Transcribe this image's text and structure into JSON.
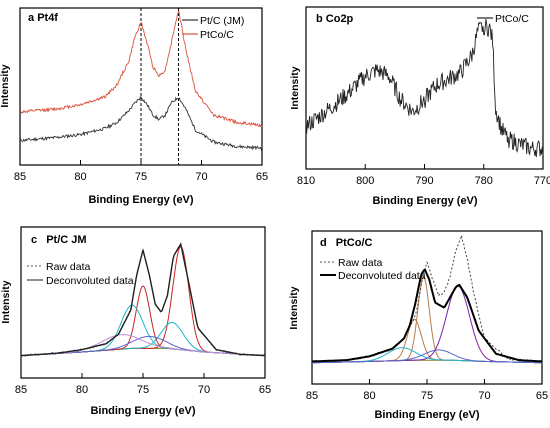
{
  "chart_data": [
    {
      "panel": "a",
      "title": "Pt4f",
      "type": "line",
      "xlabel": "Binding Energy (eV)",
      "ylabel": "Intensity",
      "xlim": [
        85,
        65
      ],
      "xticks": [
        "85",
        "80",
        "75",
        "70",
        "65"
      ],
      "reference_lines_x": [
        75.0,
        71.9
      ],
      "series": [
        {
          "name": "Pt/C (JM)",
          "color": "#333333",
          "x": [
            85,
            82,
            80,
            78,
            77,
            76,
            75.5,
            75.0,
            74.5,
            74,
            73.5,
            73,
            72.5,
            71.9,
            71.3,
            70.5,
            69,
            67,
            65
          ],
          "y": [
            0.13,
            0.15,
            0.17,
            0.21,
            0.25,
            0.33,
            0.38,
            0.42,
            0.37,
            0.3,
            0.27,
            0.3,
            0.38,
            0.42,
            0.34,
            0.2,
            0.12,
            0.09,
            0.08
          ]
        },
        {
          "name": "PtCo/C",
          "color": "#d9533c",
          "x": [
            85,
            82,
            80,
            78,
            77,
            76,
            75.5,
            75.0,
            74.5,
            74,
            73.5,
            73,
            72.5,
            71.9,
            71.3,
            70.5,
            69,
            67,
            65
          ],
          "y": [
            0.32,
            0.34,
            0.37,
            0.42,
            0.5,
            0.66,
            0.82,
            0.92,
            0.78,
            0.62,
            0.56,
            0.6,
            0.78,
            1.0,
            0.74,
            0.46,
            0.3,
            0.25,
            0.23
          ]
        }
      ]
    },
    {
      "panel": "b",
      "title": "Co2p",
      "type": "line",
      "xlabel": "Binding Energy (eV)",
      "ylabel": "Intensity",
      "xlim": [
        810,
        770
      ],
      "xticks": [
        "810",
        "800",
        "790",
        "780",
        "770"
      ],
      "series": [
        {
          "name": "PtCo/C",
          "color": "#222222",
          "x": [
            810,
            806,
            803,
            800,
            798,
            796,
            794,
            792,
            790,
            788,
            786,
            784,
            782,
            781,
            780,
            779,
            778.5,
            778,
            777,
            776,
            774,
            772
          ],
          "y": [
            0.28,
            0.4,
            0.5,
            0.62,
            0.66,
            0.62,
            0.46,
            0.38,
            0.46,
            0.56,
            0.6,
            0.64,
            0.76,
            0.92,
            0.96,
            0.94,
            0.86,
            0.4,
            0.26,
            0.2,
            0.16,
            0.13
          ]
        }
      ]
    },
    {
      "panel": "c",
      "title": "Pt/C JM",
      "type": "line",
      "xlabel": "Binding Energy (eV)",
      "ylabel": "Intensity",
      "xlim": [
        85,
        65
      ],
      "xticks": [
        "85",
        "80",
        "75",
        "70",
        "65"
      ],
      "legend": [
        "Raw data",
        "Deconvoluted data"
      ],
      "baseline": {
        "x": [
          85,
          80,
          76,
          73,
          70,
          65
        ],
        "y": [
          0.02,
          0.05,
          0.08,
          0.08,
          0.05,
          0.02
        ]
      },
      "components": [
        {
          "center": 71.9,
          "height": 0.86,
          "width": 0.65,
          "color": "#cc2222"
        },
        {
          "center": 72.6,
          "height": 0.22,
          "width": 0.9,
          "color": "#1fb6c9"
        },
        {
          "center": 75.0,
          "height": 0.52,
          "width": 0.55,
          "color": "#cc2222"
        },
        {
          "center": 75.9,
          "height": 0.36,
          "width": 0.9,
          "color": "#1fb6c9"
        },
        {
          "center": 74.5,
          "height": 0.1,
          "width": 1.3,
          "color": "#5a66cc"
        },
        {
          "center": 76.8,
          "height": 0.12,
          "width": 1.6,
          "color": "#c28fd6"
        }
      ],
      "series": [
        {
          "name": "Raw data",
          "x": [
            85,
            82,
            80,
            78,
            77,
            76,
            75.5,
            75.0,
            74.5,
            74,
            73.5,
            73,
            72.5,
            71.9,
            71.3,
            70.5,
            69,
            67,
            65
          ],
          "y": [
            0.02,
            0.04,
            0.07,
            0.12,
            0.2,
            0.4,
            0.7,
            0.9,
            0.7,
            0.45,
            0.38,
            0.52,
            0.85,
            0.95,
            0.65,
            0.25,
            0.07,
            0.03,
            0.02
          ]
        },
        {
          "name": "Deconvoluted data",
          "x": [
            85,
            82,
            80,
            78,
            77,
            76,
            75.5,
            75.0,
            74.5,
            74,
            73.5,
            73,
            72.5,
            71.9,
            71.3,
            70.5,
            69,
            67,
            65
          ],
          "y": [
            0.02,
            0.04,
            0.07,
            0.12,
            0.2,
            0.4,
            0.7,
            0.9,
            0.7,
            0.45,
            0.38,
            0.52,
            0.85,
            0.95,
            0.65,
            0.25,
            0.07,
            0.03,
            0.02
          ]
        }
      ]
    },
    {
      "panel": "d",
      "title": "PtCo/C",
      "type": "line",
      "xlabel": "Binding Energy (eV)",
      "ylabel": "Intensity",
      "xlim": [
        85,
        65
      ],
      "xticks": [
        "85",
        "80",
        "75",
        "70",
        "65"
      ],
      "legend": [
        "Raw data",
        "Deconvoluted data"
      ],
      "baseline": {
        "x": [
          85,
          80,
          76,
          73,
          70,
          65
        ],
        "y": [
          0.01,
          0.02,
          0.03,
          0.03,
          0.02,
          0.01
        ]
      },
      "components": [
        {
          "center": 75.3,
          "height": 0.65,
          "width": 0.5,
          "color": "#b87a4a"
        },
        {
          "center": 76.1,
          "height": 0.32,
          "width": 0.6,
          "color": "#b87a4a"
        },
        {
          "center": 72.3,
          "height": 0.58,
          "width": 1.0,
          "color": "#7a22aa"
        },
        {
          "center": 77.2,
          "height": 0.1,
          "width": 1.2,
          "color": "#1fb6c9"
        },
        {
          "center": 74.0,
          "height": 0.08,
          "width": 1.2,
          "color": "#5a66cc"
        }
      ],
      "series": [
        {
          "name": "Raw data",
          "x": [
            85,
            82,
            80,
            78,
            77,
            76,
            75.5,
            75.0,
            74.5,
            74,
            73.5,
            73,
            72.5,
            72.0,
            71.5,
            71,
            70,
            68,
            65
          ],
          "y": [
            0.02,
            0.03,
            0.06,
            0.12,
            0.2,
            0.38,
            0.62,
            0.8,
            0.66,
            0.54,
            0.56,
            0.68,
            0.88,
            1.0,
            0.82,
            0.58,
            0.2,
            0.04,
            0.02
          ]
        },
        {
          "name": "Deconvoluted data",
          "x": [
            85,
            82,
            80,
            78,
            77,
            76.5,
            76,
            75.5,
            75.2,
            74.8,
            74.3,
            73.5,
            73,
            72.5,
            72.2,
            71.5,
            70.5,
            69,
            67,
            65
          ],
          "y": [
            0.02,
            0.03,
            0.06,
            0.12,
            0.2,
            0.3,
            0.48,
            0.7,
            0.74,
            0.66,
            0.48,
            0.44,
            0.52,
            0.6,
            0.62,
            0.52,
            0.26,
            0.08,
            0.03,
            0.02
          ]
        }
      ]
    }
  ]
}
